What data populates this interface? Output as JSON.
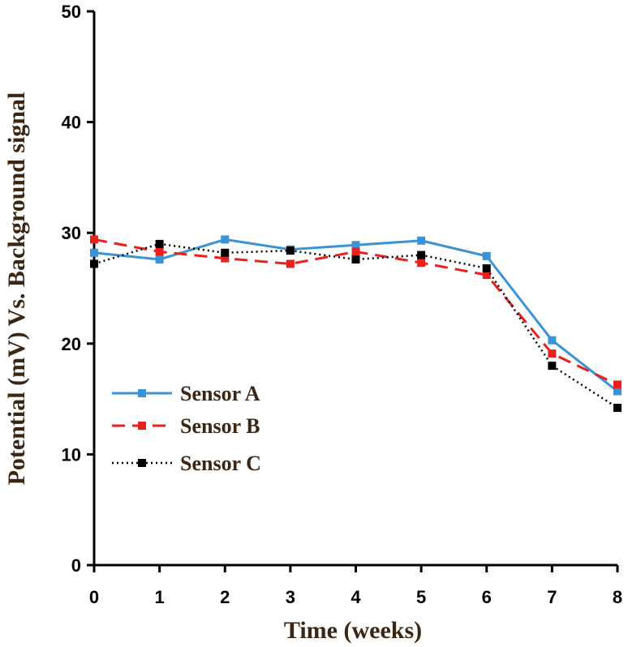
{
  "chart_data": {
    "type": "line",
    "title": "",
    "xlabel": "Time (weeks)",
    "ylabel": "Potential (mV) Vs. Background signal",
    "x": [
      0,
      1,
      2,
      3,
      4,
      5,
      6,
      7,
      8
    ],
    "xlim": [
      0,
      8
    ],
    "ylim": [
      0,
      50
    ],
    "x_ticks": [
      0,
      1,
      2,
      3,
      4,
      5,
      6,
      7,
      8
    ],
    "y_ticks": [
      0,
      10,
      20,
      30,
      40,
      50
    ],
    "grid": false,
    "legend_position": "left",
    "series": [
      {
        "name": "Sensor A",
        "color": "#3a93d4",
        "line_style": "solid",
        "marker": "square",
        "values": [
          28.2,
          27.6,
          29.4,
          28.5,
          28.9,
          29.3,
          27.9,
          20.3,
          15.7
        ]
      },
      {
        "name": "Sensor B",
        "color": "#e8211f",
        "line_style": "dashed",
        "marker": "square",
        "values": [
          29.4,
          28.3,
          27.7,
          27.2,
          28.3,
          27.3,
          26.2,
          19.1,
          16.3
        ]
      },
      {
        "name": "Sensor C",
        "color": "#000000",
        "line_style": "dotted",
        "marker": "square",
        "values": [
          27.2,
          29.0,
          28.2,
          28.4,
          27.6,
          28.0,
          26.8,
          18.0,
          14.2
        ]
      }
    ]
  }
}
